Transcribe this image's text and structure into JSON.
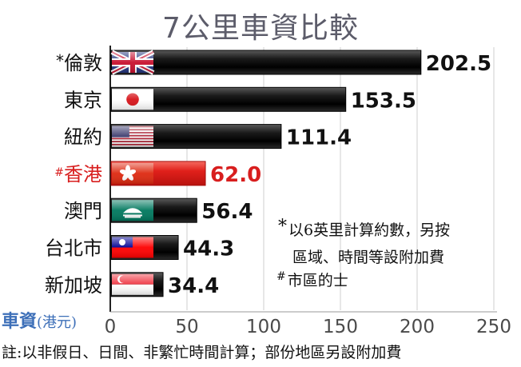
{
  "chart_data": {
    "type": "bar",
    "orientation": "horizontal",
    "title": "7公里車資比較",
    "xlabel_main": "車資",
    "xlabel_unit": "(港元)",
    "xlim": [
      0,
      250
    ],
    "xticks": [
      0,
      50,
      100,
      150,
      200,
      250
    ],
    "categories": [
      "*倫敦",
      "東京",
      "紐約",
      "#香港",
      "澳門",
      "台北市",
      "新加坡"
    ],
    "category_marks": [
      "*",
      "",
      "",
      "#",
      "",
      "",
      ""
    ],
    "category_names": [
      "倫敦",
      "東京",
      "紐約",
      "香港",
      "澳門",
      "台北市",
      "新加坡"
    ],
    "values": [
      202.5,
      153.5,
      111.4,
      62.0,
      56.4,
      44.3,
      34.4
    ],
    "value_labels": [
      "202.5",
      "153.5",
      "111.4",
      "62.0",
      "56.4",
      "44.3",
      "34.4"
    ],
    "highlight_index": 3,
    "colors": {
      "bar": "#111111",
      "highlight_bar": "#e0201b",
      "highlight_text": "#d81e1e",
      "axis_label": "#3d6fb8",
      "tick": "#4a4a4a",
      "title": "#5c5c6a"
    },
    "flags": [
      "uk-flag",
      "japan-flag",
      "usa-flag",
      "hongkong-flag",
      "macau-flag",
      "taiwan-flag",
      "singapore-flag"
    ],
    "grid": true
  },
  "notes": {
    "note1_mark": "*",
    "note1_line1": "以6英里計算約數，另按",
    "note1_line2": "區域、時間等設附加費",
    "note2_mark": "#",
    "note2_text": "市區的士"
  },
  "footer": "註:以非假日、日間、非繁忙時間計算；部份地區另設附加費"
}
